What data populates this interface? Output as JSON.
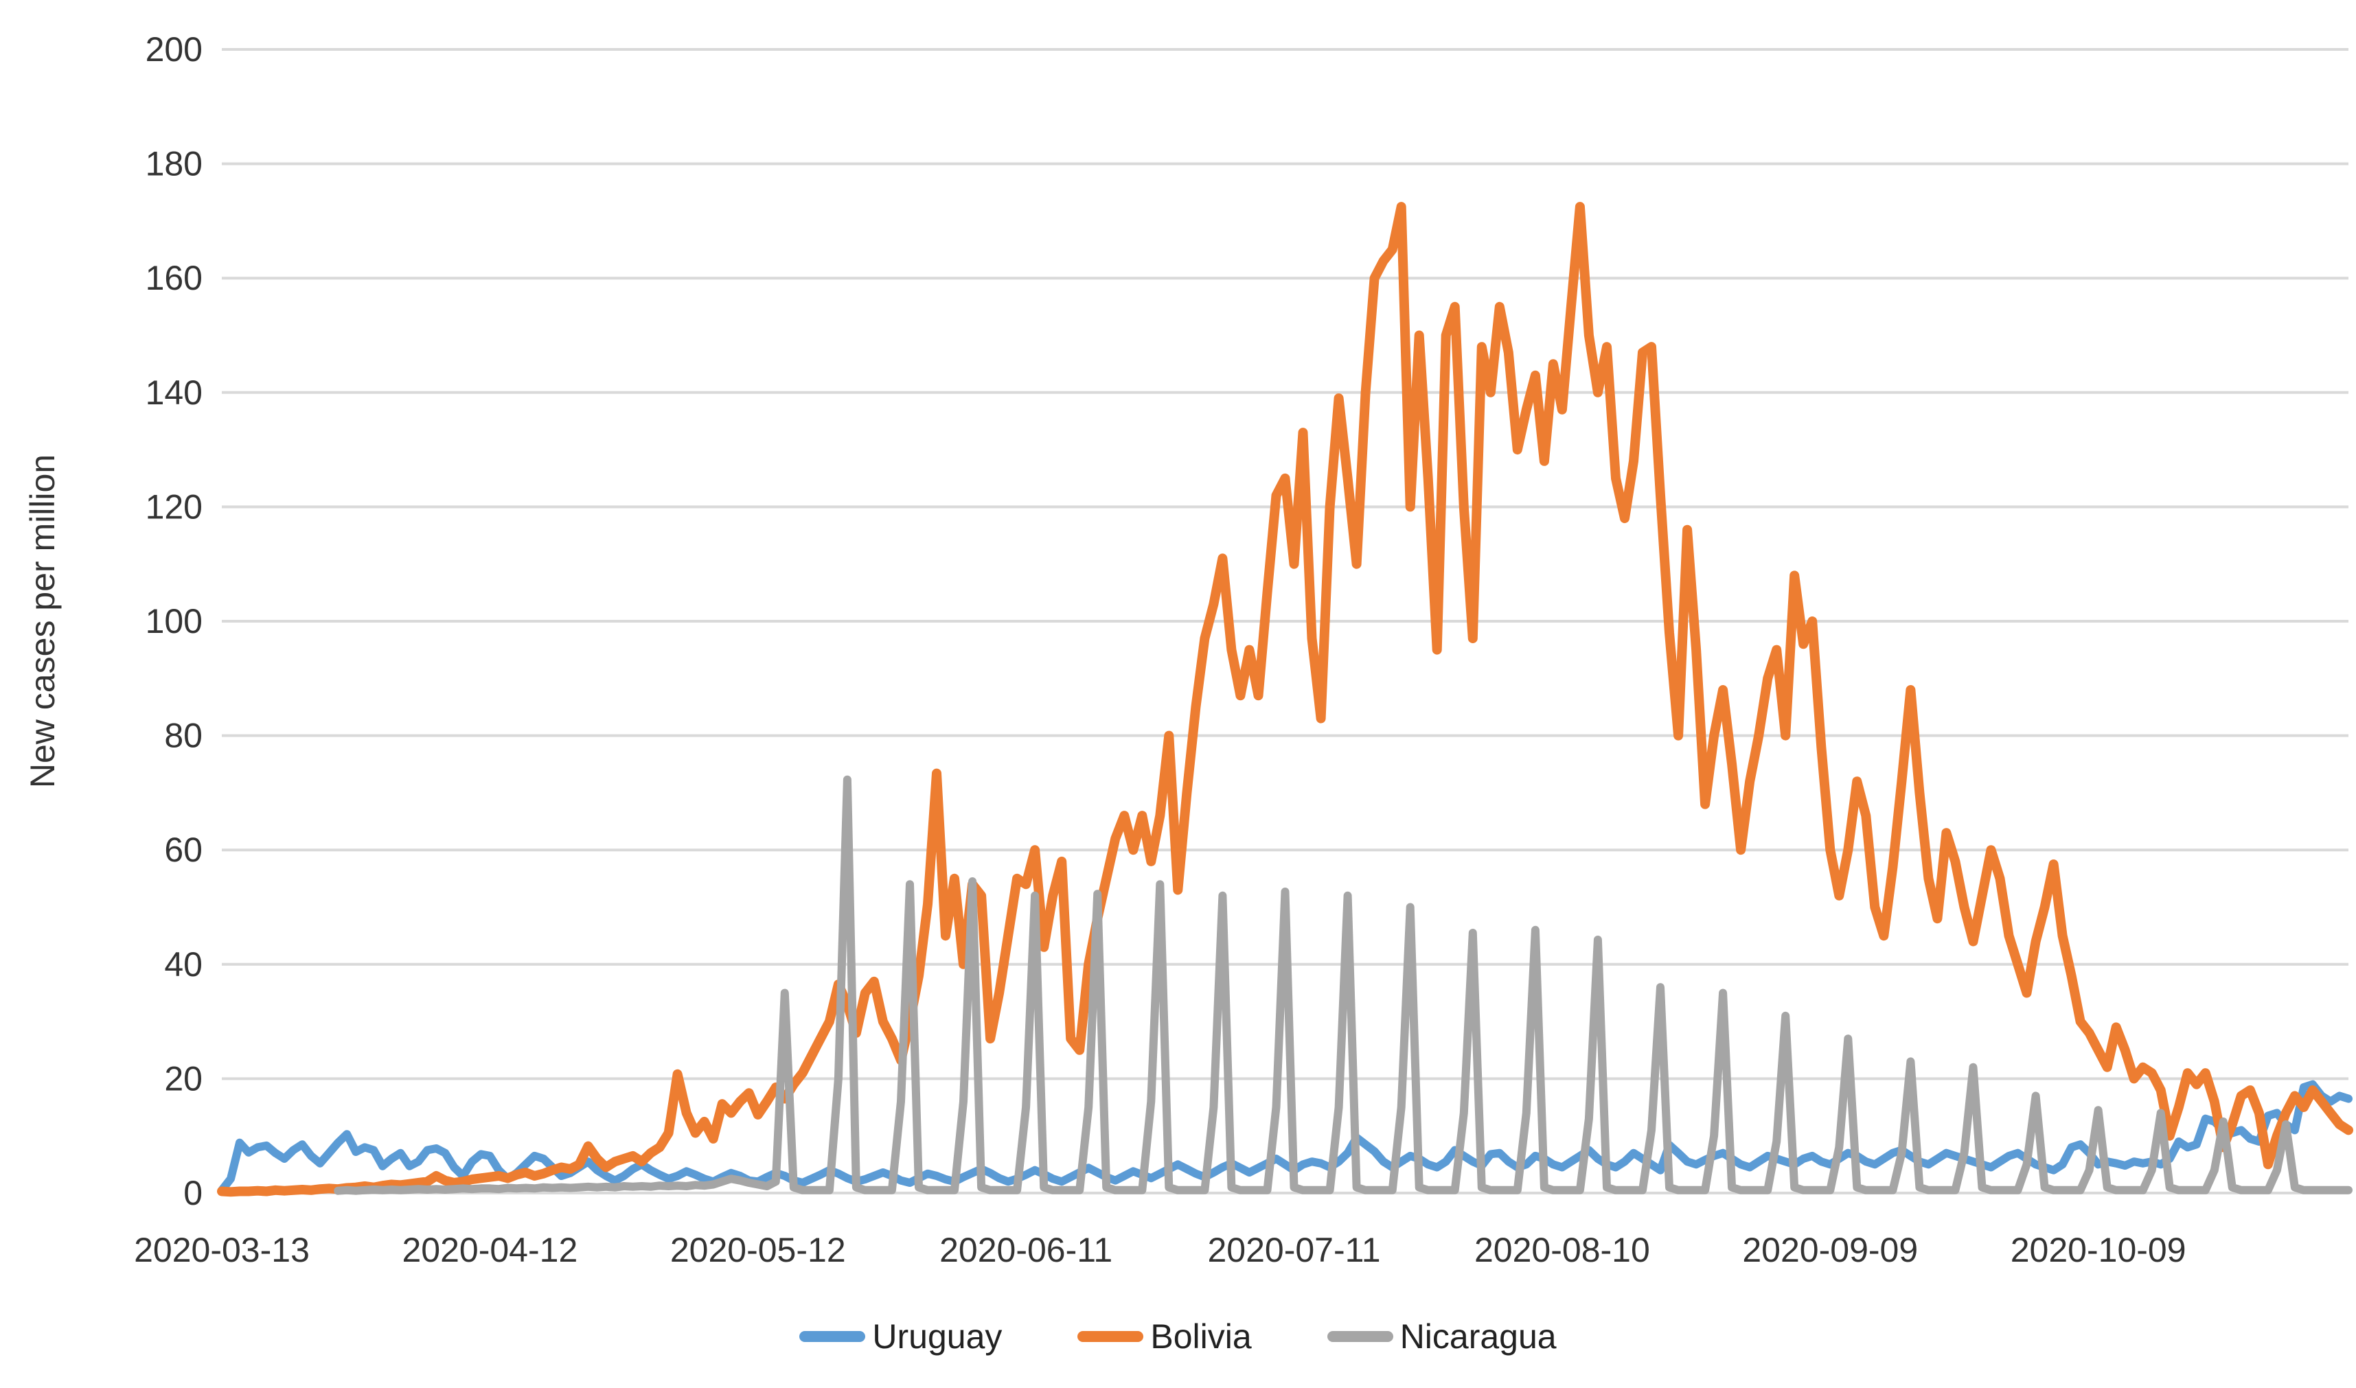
{
  "chart_data": {
    "type": "line",
    "title": "",
    "xlabel": "",
    "ylabel": "New cases per million",
    "ylim": [
      0,
      200
    ],
    "ytick_step": 20,
    "grid": "horizontal-gridlines",
    "legend_position": "bottom",
    "x_start_date": "2020-03-13",
    "x_frequency": "daily",
    "x_tick_labels": [
      "2020-03-13",
      "2020-04-12",
      "2020-05-12",
      "2020-06-11",
      "2020-07-11",
      "2020-08-10",
      "2020-09-09",
      "2020-10-09"
    ],
    "x_tick_indices": [
      0,
      30,
      60,
      90,
      120,
      150,
      180,
      210
    ],
    "colors": {
      "axis_text": "#333333",
      "gridline": "#D9D9D9",
      "background": "#FFFFFF"
    },
    "series": [
      {
        "name": "Uruguay",
        "color": "#5B9BD5",
        "stroke_width": 12,
        "values": [
          0.5,
          2.5,
          8.8,
          7.1,
          8,
          8.3,
          7,
          6,
          7.5,
          8.5,
          6.5,
          5.2,
          7,
          8.8,
          10.3,
          7.2,
          8,
          7.5,
          4.7,
          6,
          7,
          4.7,
          5.5,
          7.5,
          7.8,
          7,
          4.5,
          3,
          5.5,
          6.8,
          6.5,
          4,
          2.5,
          3.5,
          5,
          6.5,
          6,
          4.5,
          3,
          3.5,
          4.5,
          5.5,
          4,
          3,
          2.2,
          3,
          4.2,
          5,
          4,
          3.2,
          2.5,
          3,
          3.8,
          3.2,
          2.5,
          2,
          2.8,
          3.5,
          3,
          2.2,
          2,
          2.8,
          3.5,
          3,
          2.2,
          1.8,
          2.5,
          3.2,
          4,
          3.4,
          2.6,
          2,
          2.4,
          3,
          3.6,
          3,
          2.2,
          1.8,
          2.6,
          3.4,
          3,
          2.4,
          2,
          2.8,
          3.5,
          4.2,
          3.5,
          2.6,
          2,
          2.5,
          3.2,
          4,
          3.3,
          2.5,
          2,
          2.8,
          3.6,
          4.4,
          3.6,
          2.8,
          2.2,
          3,
          3.8,
          3.2,
          2.6,
          3.4,
          4.2,
          5,
          4.2,
          3.4,
          2.8,
          3.6,
          4.5,
          5.2,
          4.4,
          3.6,
          4.4,
          5.2,
          6,
          5,
          4,
          5,
          5.5,
          5.2,
          4.5,
          5.5,
          7,
          9.7,
          8.5,
          7.3,
          5.5,
          4.5,
          5.5,
          6.5,
          6,
          5,
          4.5,
          5.5,
          7.5,
          6.5,
          5.5,
          4.8,
          6.8,
          7,
          5.5,
          4.5,
          5,
          6.5,
          6,
          5,
          4.5,
          5.5,
          6.5,
          7.5,
          6,
          5,
          4.5,
          5.5,
          7,
          6,
          5,
          4,
          8.4,
          7,
          5.5,
          5,
          5.8,
          6.5,
          7,
          6,
          5,
          4.5,
          5.5,
          6.5,
          6,
          5.5,
          5,
          6,
          6.5,
          5.5,
          5,
          6,
          7,
          6.5,
          5.5,
          5,
          6,
          7,
          7.5,
          6.5,
          5.5,
          5,
          6,
          7,
          6.5,
          6,
          5.5,
          5,
          4.5,
          5.5,
          6.5,
          7,
          6,
          5,
          4.5,
          4,
          5,
          8,
          8.5,
          7,
          5,
          5.5,
          5.2,
          4.8,
          5.5,
          5.2,
          5.5,
          5,
          6,
          9,
          8,
          8.5,
          13,
          12.5,
          11,
          10.5,
          11,
          9.5,
          9,
          13.5,
          14,
          12,
          11,
          18.5,
          19,
          17,
          16,
          17,
          16.5
        ]
      },
      {
        "name": "Bolivia",
        "color": "#ED7D31",
        "stroke_width": 14,
        "values": [
          0.3,
          0.2,
          0.3,
          0.3,
          0.4,
          0.3,
          0.5,
          0.4,
          0.5,
          0.6,
          0.5,
          0.7,
          0.8,
          0.7,
          0.9,
          1,
          1.2,
          1,
          1.3,
          1.5,
          1.4,
          1.6,
          1.8,
          2,
          3,
          2.2,
          1.8,
          2,
          2.4,
          2.6,
          2.8,
          3,
          2.6,
          3.2,
          3.6,
          3,
          3.4,
          4,
          4.5,
          4.2,
          5,
          8.2,
          6,
          4.5,
          5.5,
          6,
          6.5,
          5.5,
          7,
          8,
          10.5,
          20.8,
          14,
          10.5,
          12.5,
          9.5,
          15.6,
          14,
          16,
          17.5,
          13.7,
          16,
          18.5,
          16.5,
          19,
          21,
          24,
          27,
          30,
          36.5,
          33,
          28,
          35,
          37,
          30,
          27,
          23.2,
          30,
          38,
          50.5,
          73.4,
          45,
          55,
          40,
          54,
          52,
          27,
          35,
          45,
          55,
          54,
          60,
          43,
          52,
          58,
          27,
          25,
          40,
          48,
          55,
          62,
          66,
          60,
          66,
          58,
          66,
          80,
          53,
          70,
          85,
          97,
          103,
          111,
          95,
          87,
          95,
          87,
          105,
          122,
          125,
          110,
          133,
          97,
          83,
          120,
          139,
          125,
          110,
          140,
          160,
          163,
          165,
          172.5,
          120,
          150,
          125,
          95,
          150,
          155,
          120,
          97,
          148,
          140,
          155,
          147,
          130,
          137,
          143,
          128,
          145,
          137,
          155,
          172.5,
          150,
          140,
          148,
          125,
          118,
          128,
          147,
          148,
          122,
          98,
          80,
          116,
          95,
          68,
          80,
          88,
          75,
          60,
          72,
          80,
          90,
          95,
          80,
          108,
          96,
          100,
          78,
          60,
          52,
          60,
          72,
          66,
          50,
          45,
          57,
          72,
          88,
          70,
          55,
          48,
          63,
          58,
          50,
          44,
          52,
          60,
          55,
          45,
          40,
          35,
          44,
          50,
          57.5,
          45,
          38,
          30,
          28,
          25,
          22,
          29,
          25,
          20,
          22,
          21,
          18,
          10,
          15,
          21,
          19,
          21,
          16,
          8,
          12,
          17,
          18,
          14,
          5,
          10,
          14,
          17,
          15,
          18,
          16,
          14,
          12,
          11
        ]
      },
      {
        "name": "Nicaragua",
        "color": "#A5A5A5",
        "stroke_width": 12,
        "values": [
          null,
          null,
          null,
          null,
          null,
          null,
          null,
          null,
          null,
          null,
          null,
          null,
          null,
          0.4,
          0.5,
          0.4,
          0.5,
          0.6,
          0.5,
          0.6,
          0.5,
          0.6,
          0.7,
          0.6,
          0.7,
          0.6,
          0.7,
          0.8,
          0.7,
          0.8,
          0.8,
          0.7,
          0.9,
          0.8,
          0.9,
          0.8,
          1,
          0.9,
          1,
          0.9,
          1,
          1.1,
          1,
          1.1,
          1,
          1.2,
          1.1,
          1.2,
          1.1,
          1.3,
          1.2,
          1.3,
          1.2,
          1.4,
          1.3,
          1.5,
          2,
          2.5,
          2.2,
          1.8,
          1.5,
          1.2,
          2,
          35,
          1,
          0.5,
          0.5,
          0.5,
          0.5,
          20,
          72.3,
          1,
          0.5,
          0.5,
          0.5,
          0.5,
          16,
          54,
          1,
          0.5,
          0.5,
          0.5,
          0.5,
          16,
          54.5,
          1,
          0.5,
          0.5,
          0.5,
          0.5,
          15,
          52,
          1,
          0.5,
          0.5,
          0.5,
          0.5,
          15,
          52.3,
          1,
          0.5,
          0.5,
          0.5,
          0.5,
          16,
          54,
          1,
          0.5,
          0.5,
          0.5,
          0.5,
          15,
          52,
          1,
          0.5,
          0.5,
          0.5,
          0.5,
          15,
          52.7,
          1,
          0.5,
          0.5,
          0.5,
          0.5,
          15,
          52,
          1,
          0.5,
          0.5,
          0.5,
          0.5,
          15,
          50,
          1,
          0.5,
          0.5,
          0.5,
          0.5,
          14,
          45.5,
          1,
          0.5,
          0.5,
          0.5,
          0.5,
          14,
          46,
          1,
          0.5,
          0.5,
          0.5,
          0.5,
          13,
          44.3,
          1,
          0.5,
          0.5,
          0.5,
          0.5,
          11,
          36,
          1,
          0.5,
          0.5,
          0.5,
          0.5,
          10,
          35,
          1,
          0.5,
          0.5,
          0.5,
          0.5,
          9,
          31,
          1,
          0.5,
          0.5,
          0.5,
          0.5,
          8,
          27,
          1,
          0.5,
          0.5,
          0.5,
          0.5,
          7,
          23,
          1,
          0.5,
          0.5,
          0.5,
          0.5,
          7,
          22,
          1,
          0.5,
          0.5,
          0.5,
          0.5,
          5,
          17,
          1,
          0.5,
          0.5,
          0.5,
          0.5,
          4,
          14.5,
          1,
          0.5,
          0.5,
          0.5,
          0.5,
          4,
          14,
          1,
          0.5,
          0.5,
          0.5,
          0.5,
          4,
          12.5,
          1,
          0.5,
          0.5,
          0.5,
          0.5,
          4,
          12,
          1,
          0.5,
          0.5,
          0.5,
          0.5,
          0.5,
          0.5
        ]
      }
    ]
  }
}
